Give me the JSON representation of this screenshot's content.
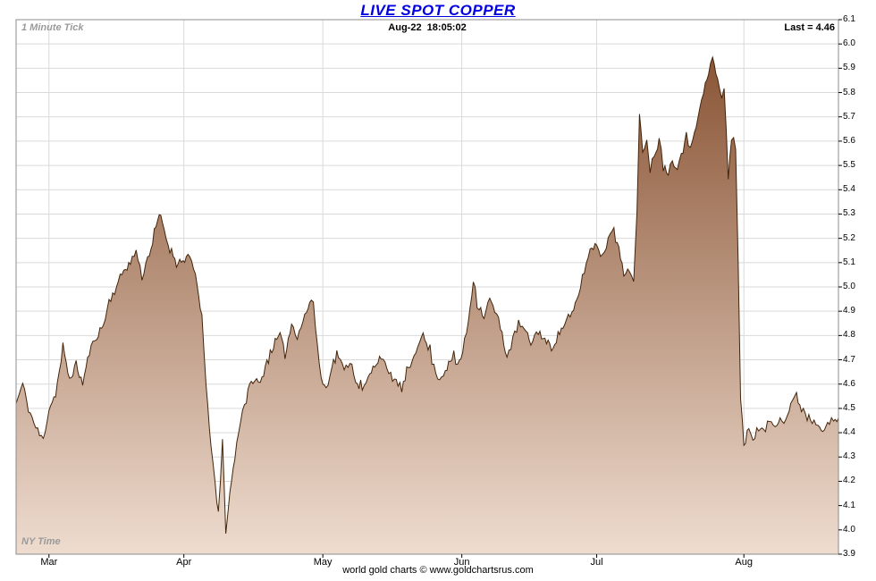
{
  "title": "LIVE SPOT COPPER",
  "header": {
    "tick_label": "1 Minute Tick",
    "timestamp": "Aug-22  18:05:02",
    "last_label": "Last = 4.46"
  },
  "footer": {
    "ny_time": "NY Time",
    "credit": "world gold charts © www.goldchartsrus.com"
  },
  "colors": {
    "title": "#0000e0",
    "line": "#43250b",
    "area_top": "#8a5536",
    "area_bottom": "#eedccf",
    "grid": "#d9d9d9",
    "border": "#8c8c8c",
    "annotation_gray": "#9a9a9a",
    "axis_tick": "#000000"
  },
  "noise": {
    "seed": 11,
    "amplitude": 0.018,
    "spike_amplitude": 0.045,
    "spike_every": 13
  },
  "chart_data": {
    "type": "area",
    "title": "LIVE SPOT COPPER",
    "xlabel": "",
    "ylabel": "",
    "ylim": [
      3.9,
      6.1
    ],
    "y_tick_step": 0.1,
    "grid": true,
    "legend": "none",
    "last_value": 4.46,
    "timestamp": "Aug-22 18:05:02",
    "x_tick_labels": [
      "Mar",
      "Apr",
      "May",
      "Jun",
      "Jul",
      "Aug"
    ],
    "x_tick_positions": [
      0.04,
      0.204,
      0.373,
      0.542,
      0.706,
      0.885
    ],
    "y_tick_labels": [
      "6.1",
      "6.0",
      "5.9",
      "5.8",
      "5.7",
      "5.6",
      "5.5",
      "5.4",
      "5.3",
      "5.2",
      "5.1",
      "5.0",
      "4.9",
      "4.8",
      "4.7",
      "4.6",
      "4.5",
      "4.4",
      "4.3",
      "4.2",
      "4.1",
      "4.0",
      "3.9"
    ],
    "points": [
      [
        0.0,
        4.52
      ],
      [
        0.008,
        4.6
      ],
      [
        0.015,
        4.5
      ],
      [
        0.024,
        4.42
      ],
      [
        0.033,
        4.37
      ],
      [
        0.04,
        4.5
      ],
      [
        0.048,
        4.56
      ],
      [
        0.057,
        4.74
      ],
      [
        0.065,
        4.62
      ],
      [
        0.073,
        4.68
      ],
      [
        0.081,
        4.6
      ],
      [
        0.089,
        4.73
      ],
      [
        0.098,
        4.8
      ],
      [
        0.106,
        4.84
      ],
      [
        0.113,
        4.94
      ],
      [
        0.122,
        5.0
      ],
      [
        0.131,
        5.07
      ],
      [
        0.139,
        5.1
      ],
      [
        0.146,
        5.15
      ],
      [
        0.153,
        5.04
      ],
      [
        0.16,
        5.12
      ],
      [
        0.168,
        5.2
      ],
      [
        0.174,
        5.3
      ],
      [
        0.18,
        5.24
      ],
      [
        0.185,
        5.17
      ],
      [
        0.193,
        5.12
      ],
      [
        0.201,
        5.1
      ],
      [
        0.209,
        5.13
      ],
      [
        0.218,
        5.05
      ],
      [
        0.226,
        4.88
      ],
      [
        0.231,
        4.58
      ],
      [
        0.237,
        4.36
      ],
      [
        0.242,
        4.18
      ],
      [
        0.246,
        4.06
      ],
      [
        0.251,
        4.35
      ],
      [
        0.255,
        4.0
      ],
      [
        0.26,
        4.15
      ],
      [
        0.266,
        4.3
      ],
      [
        0.273,
        4.46
      ],
      [
        0.28,
        4.55
      ],
      [
        0.288,
        4.62
      ],
      [
        0.297,
        4.6
      ],
      [
        0.305,
        4.7
      ],
      [
        0.313,
        4.76
      ],
      [
        0.321,
        4.8
      ],
      [
        0.327,
        4.72
      ],
      [
        0.335,
        4.85
      ],
      [
        0.342,
        4.8
      ],
      [
        0.351,
        4.88
      ],
      [
        0.359,
        4.95
      ],
      [
        0.364,
        4.84
      ],
      [
        0.371,
        4.62
      ],
      [
        0.377,
        4.58
      ],
      [
        0.384,
        4.68
      ],
      [
        0.392,
        4.72
      ],
      [
        0.399,
        4.65
      ],
      [
        0.406,
        4.7
      ],
      [
        0.413,
        4.62
      ],
      [
        0.421,
        4.57
      ],
      [
        0.428,
        4.62
      ],
      [
        0.436,
        4.68
      ],
      [
        0.444,
        4.72
      ],
      [
        0.451,
        4.65
      ],
      [
        0.46,
        4.62
      ],
      [
        0.469,
        4.58
      ],
      [
        0.477,
        4.65
      ],
      [
        0.484,
        4.72
      ],
      [
        0.493,
        4.81
      ],
      [
        0.501,
        4.75
      ],
      [
        0.508,
        4.67
      ],
      [
        0.515,
        4.62
      ],
      [
        0.522,
        4.66
      ],
      [
        0.53,
        4.7
      ],
      [
        0.537,
        4.68
      ],
      [
        0.543,
        4.73
      ],
      [
        0.55,
        4.86
      ],
      [
        0.556,
        5.03
      ],
      [
        0.563,
        4.92
      ],
      [
        0.569,
        4.88
      ],
      [
        0.576,
        4.95
      ],
      [
        0.582,
        4.9
      ],
      [
        0.589,
        4.84
      ],
      [
        0.597,
        4.71
      ],
      [
        0.604,
        4.78
      ],
      [
        0.611,
        4.85
      ],
      [
        0.618,
        4.82
      ],
      [
        0.626,
        4.77
      ],
      [
        0.635,
        4.82
      ],
      [
        0.643,
        4.78
      ],
      [
        0.651,
        4.75
      ],
      [
        0.659,
        4.8
      ],
      [
        0.667,
        4.85
      ],
      [
        0.676,
        4.88
      ],
      [
        0.684,
        4.97
      ],
      [
        0.691,
        5.07
      ],
      [
        0.698,
        5.15
      ],
      [
        0.706,
        5.18
      ],
      [
        0.713,
        5.12
      ],
      [
        0.72,
        5.2
      ],
      [
        0.727,
        5.26
      ],
      [
        0.733,
        5.15
      ],
      [
        0.739,
        5.05
      ],
      [
        0.746,
        5.08
      ],
      [
        0.751,
        5.02
      ],
      [
        0.755,
        5.3
      ],
      [
        0.758,
        5.7
      ],
      [
        0.762,
        5.55
      ],
      [
        0.767,
        5.62
      ],
      [
        0.771,
        5.48
      ],
      [
        0.776,
        5.55
      ],
      [
        0.782,
        5.6
      ],
      [
        0.787,
        5.52
      ],
      [
        0.793,
        5.47
      ],
      [
        0.798,
        5.52
      ],
      [
        0.804,
        5.5
      ],
      [
        0.809,
        5.55
      ],
      [
        0.815,
        5.6
      ],
      [
        0.82,
        5.58
      ],
      [
        0.825,
        5.65
      ],
      [
        0.831,
        5.72
      ],
      [
        0.836,
        5.8
      ],
      [
        0.842,
        5.88
      ],
      [
        0.847,
        5.94
      ],
      [
        0.853,
        5.85
      ],
      [
        0.858,
        5.78
      ],
      [
        0.861,
        5.82
      ],
      [
        0.866,
        5.45
      ],
      [
        0.87,
        5.62
      ],
      [
        0.875,
        5.6
      ],
      [
        0.878,
        5.1
      ],
      [
        0.881,
        4.55
      ],
      [
        0.885,
        4.34
      ],
      [
        0.891,
        4.42
      ],
      [
        0.896,
        4.38
      ],
      [
        0.903,
        4.42
      ],
      [
        0.909,
        4.4
      ],
      [
        0.916,
        4.45
      ],
      [
        0.923,
        4.43
      ],
      [
        0.929,
        4.47
      ],
      [
        0.936,
        4.45
      ],
      [
        0.942,
        4.52
      ],
      [
        0.949,
        4.55
      ],
      [
        0.955,
        4.5
      ],
      [
        0.962,
        4.48
      ],
      [
        0.968,
        4.45
      ],
      [
        0.975,
        4.44
      ],
      [
        0.981,
        4.42
      ],
      [
        0.989,
        4.45
      ],
      [
        0.994,
        4.44
      ],
      [
        1.0,
        4.46
      ]
    ]
  }
}
